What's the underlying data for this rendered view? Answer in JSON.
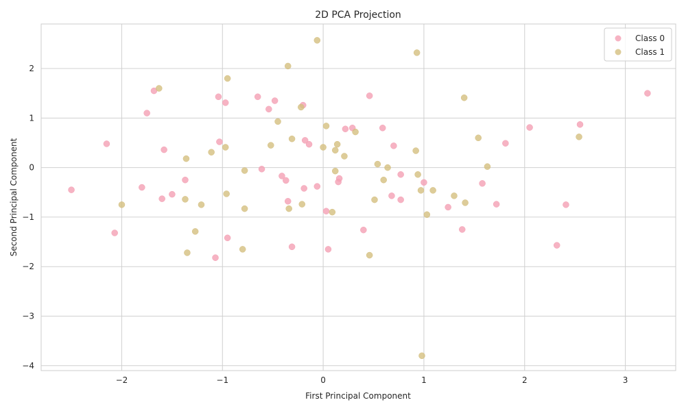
{
  "chart_data": {
    "type": "scatter",
    "title": "2D PCA Projection",
    "xlabel": "First Principal Component",
    "ylabel": "Second Principal Component",
    "xlim": [
      -2.8,
      3.5
    ],
    "ylim": [
      -4.1,
      2.9
    ],
    "xticks": [
      -2,
      -1,
      0,
      1,
      2,
      3
    ],
    "yticks": [
      -4,
      -3,
      -2,
      -1,
      0,
      1,
      2
    ],
    "tick_labels_x": [
      "−2",
      "−1",
      "0",
      "1",
      "2",
      "3"
    ],
    "tick_labels_y": [
      "−4",
      "−3",
      "−2",
      "−1",
      "0",
      "1",
      "2"
    ],
    "grid": true,
    "legend_position": "top-right",
    "series": [
      {
        "name": "Class 0",
        "color": "#f4a0b4",
        "points": [
          [
            -2.5,
            -0.45
          ],
          [
            -2.15,
            0.48
          ],
          [
            -2.07,
            -1.32
          ],
          [
            -1.8,
            -0.4
          ],
          [
            -1.75,
            1.1
          ],
          [
            -1.68,
            1.55
          ],
          [
            -1.6,
            -0.63
          ],
          [
            -1.58,
            0.36
          ],
          [
            -1.5,
            -0.54
          ],
          [
            -1.37,
            -0.25
          ],
          [
            -1.07,
            -1.82
          ],
          [
            -1.04,
            1.43
          ],
          [
            -1.03,
            0.52
          ],
          [
            -0.97,
            1.31
          ],
          [
            -0.95,
            -1.42
          ],
          [
            -0.65,
            1.43
          ],
          [
            -0.61,
            -0.03
          ],
          [
            -0.54,
            1.18
          ],
          [
            -0.48,
            1.35
          ],
          [
            -0.41,
            -0.17
          ],
          [
            -0.37,
            -0.26
          ],
          [
            -0.35,
            -0.68
          ],
          [
            -0.31,
            -1.6
          ],
          [
            -0.2,
            1.26
          ],
          [
            -0.19,
            -0.42
          ],
          [
            -0.18,
            0.55
          ],
          [
            -0.14,
            0.47
          ],
          [
            -0.06,
            -0.38
          ],
          [
            0.03,
            -0.88
          ],
          [
            0.05,
            -1.65
          ],
          [
            0.15,
            -0.29
          ],
          [
            0.16,
            -0.22
          ],
          [
            0.22,
            0.78
          ],
          [
            0.29,
            0.8
          ],
          [
            0.4,
            -1.26
          ],
          [
            0.46,
            1.45
          ],
          [
            0.59,
            0.8
          ],
          [
            0.68,
            -0.57
          ],
          [
            0.7,
            0.44
          ],
          [
            0.77,
            -0.14
          ],
          [
            0.77,
            -0.65
          ],
          [
            1.0,
            -0.3
          ],
          [
            1.24,
            -0.8
          ],
          [
            1.38,
            -1.25
          ],
          [
            1.58,
            -0.32
          ],
          [
            1.72,
            -0.74
          ],
          [
            1.81,
            0.49
          ],
          [
            2.05,
            0.81
          ],
          [
            2.32,
            -1.57
          ],
          [
            2.41,
            -0.75
          ],
          [
            2.55,
            0.87
          ],
          [
            3.22,
            1.5
          ]
        ]
      },
      {
        "name": "Class 1",
        "color": "#d4bf80",
        "points": [
          [
            -2.0,
            -0.75
          ],
          [
            -1.63,
            1.6
          ],
          [
            -1.36,
            0.18
          ],
          [
            -1.37,
            -0.64
          ],
          [
            -1.35,
            -1.72
          ],
          [
            -1.27,
            -1.29
          ],
          [
            -1.21,
            -0.75
          ],
          [
            -1.11,
            0.31
          ],
          [
            -0.97,
            0.41
          ],
          [
            -0.96,
            -0.53
          ],
          [
            -0.95,
            1.8
          ],
          [
            -0.78,
            -0.06
          ],
          [
            -0.78,
            -0.83
          ],
          [
            -0.8,
            -1.65
          ],
          [
            -0.52,
            0.45
          ],
          [
            -0.45,
            0.93
          ],
          [
            -0.35,
            2.05
          ],
          [
            -0.34,
            -0.83
          ],
          [
            -0.31,
            0.58
          ],
          [
            -0.22,
            1.22
          ],
          [
            -0.21,
            -0.74
          ],
          [
            -0.06,
            2.57
          ],
          [
            0.0,
            0.41
          ],
          [
            0.03,
            0.84
          ],
          [
            0.09,
            -0.9
          ],
          [
            0.12,
            -0.07
          ],
          [
            0.12,
            0.35
          ],
          [
            0.14,
            0.47
          ],
          [
            0.21,
            0.23
          ],
          [
            0.32,
            0.72
          ],
          [
            0.46,
            -1.77
          ],
          [
            0.51,
            -0.65
          ],
          [
            0.54,
            0.07
          ],
          [
            0.6,
            -0.25
          ],
          [
            0.64,
            0.0
          ],
          [
            0.92,
            0.34
          ],
          [
            0.93,
            2.32
          ],
          [
            0.94,
            -0.14
          ],
          [
            0.97,
            -0.46
          ],
          [
            0.98,
            -3.8
          ],
          [
            1.03,
            -0.95
          ],
          [
            1.09,
            -0.46
          ],
          [
            1.3,
            -0.57
          ],
          [
            1.4,
            1.41
          ],
          [
            1.41,
            -0.71
          ],
          [
            1.54,
            0.6
          ],
          [
            1.63,
            0.02
          ],
          [
            2.54,
            0.62
          ]
        ]
      }
    ]
  }
}
